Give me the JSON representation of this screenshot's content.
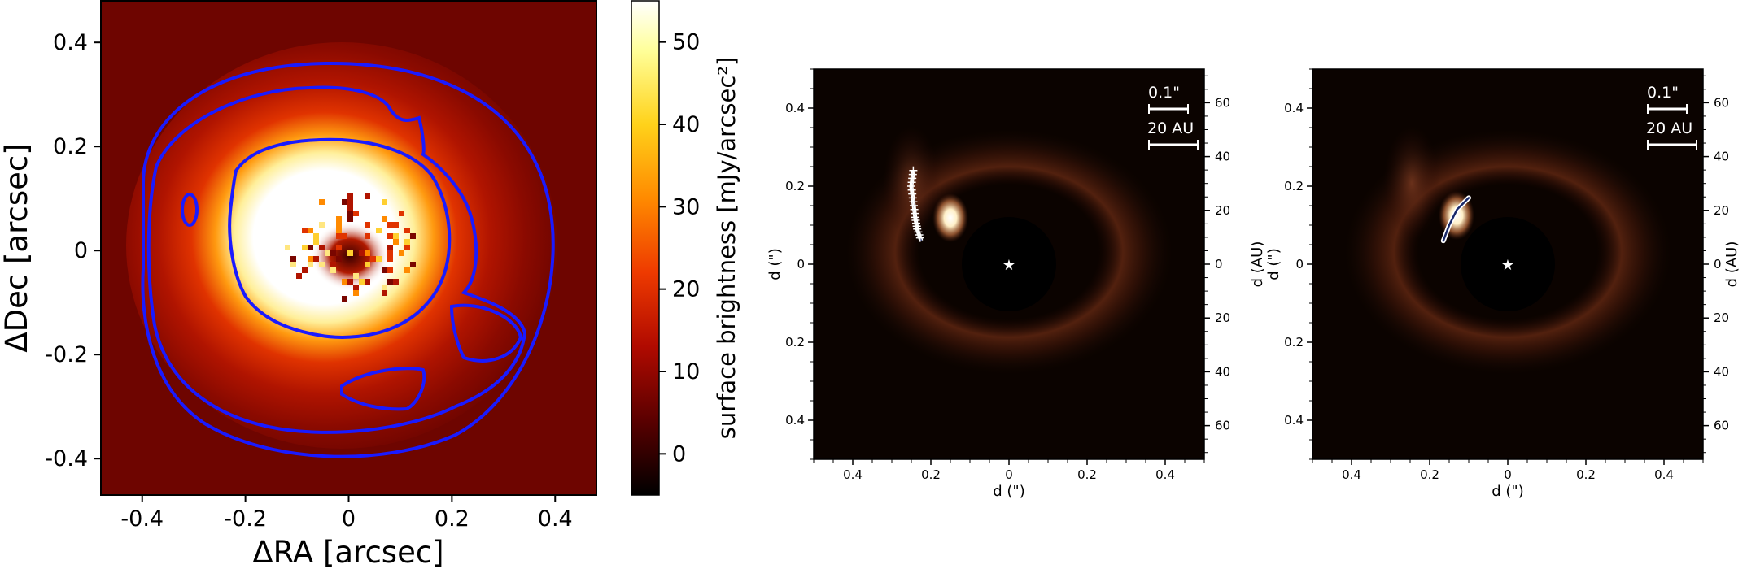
{
  "chart_data": [
    {
      "type": "heatmap",
      "xlabel": "ΔRA [arcsec]",
      "ylabel": "ΔDec [arcsec]",
      "xlim": [
        -0.48,
        0.48
      ],
      "ylim": [
        -0.47,
        0.48
      ],
      "x_ticks": [
        -0.4,
        -0.2,
        0,
        0.2,
        0.4
      ],
      "x_tick_labels": [
        "-0.4",
        "-0.2",
        "0",
        "0.2",
        "0.4"
      ],
      "y_ticks": [
        -0.4,
        -0.2,
        0,
        0.2,
        0.4
      ],
      "y_tick_labels": [
        "-0.4",
        "-0.2",
        "0",
        "0.2",
        "0.4"
      ],
      "colormap": "afmhot",
      "colorbar": {
        "label": "surface brightness [mJy/arcsec²]",
        "range": [
          -5,
          55
        ],
        "ticks": [
          0,
          10,
          20,
          30,
          40,
          50
        ],
        "tick_labels": [
          "0",
          "10",
          "20",
          "30",
          "40",
          "50"
        ]
      },
      "contour_color": "#1a1aff"
    },
    {
      "type": "heatmap",
      "xlabel": "d (\")",
      "ylabel": "d (\")",
      "right_ylabel": "d (AU)",
      "xlim": [
        -0.5,
        0.5
      ],
      "ylim": [
        -0.5,
        0.5
      ],
      "x_ticks": [
        -0.4,
        -0.2,
        0,
        0.2,
        0.4
      ],
      "x_tick_labels": [
        "0.4",
        "0.2",
        "0",
        "0.2",
        "0.4"
      ],
      "y_ticks": [
        -0.4,
        -0.2,
        0,
        0.2,
        0.4
      ],
      "y_tick_labels": [
        "0.4",
        "0.2",
        "0",
        "0.2",
        "0.4"
      ],
      "right_ticks": [
        -60,
        -40,
        -20,
        0,
        20,
        40,
        60
      ],
      "right_tick_labels": [
        "60",
        "40",
        "20",
        "0",
        "20",
        "40",
        "60"
      ],
      "scalebar_arcsec": "0.1\"",
      "scalebar_au": "20 AU",
      "markers": "plus",
      "arc_points": [
        [
          -0.245,
          0.24
        ],
        [
          -0.25,
          0.2
        ],
        [
          -0.245,
          0.16
        ],
        [
          -0.24,
          0.12
        ],
        [
          -0.235,
          0.09
        ],
        [
          -0.225,
          0.06
        ]
      ]
    },
    {
      "type": "heatmap",
      "xlabel": "d (\")",
      "ylabel": "d (\")",
      "right_ylabel": "d (AU)",
      "xlim": [
        -0.5,
        0.5
      ],
      "ylim": [
        -0.5,
        0.5
      ],
      "x_ticks": [
        -0.4,
        -0.2,
        0,
        0.2,
        0.4
      ],
      "x_tick_labels": [
        "0.4",
        "0.2",
        "0",
        "0.2",
        "0.4"
      ],
      "y_ticks": [
        -0.4,
        -0.2,
        0,
        0.2,
        0.4
      ],
      "y_tick_labels": [
        "0.4",
        "0.2",
        "0",
        "0.2",
        "0.4"
      ],
      "right_ticks": [
        -60,
        -40,
        -20,
        0,
        20,
        40,
        60
      ],
      "right_tick_labels": [
        "60",
        "40",
        "20",
        "0",
        "20",
        "40",
        "60"
      ],
      "scalebar_arcsec": "0.1\"",
      "scalebar_au": "20 AU",
      "markers": "none",
      "arc_points": [
        [
          -0.165,
          0.06
        ],
        [
          -0.15,
          0.1
        ],
        [
          -0.13,
          0.14
        ],
        [
          -0.1,
          0.17
        ]
      ]
    }
  ]
}
